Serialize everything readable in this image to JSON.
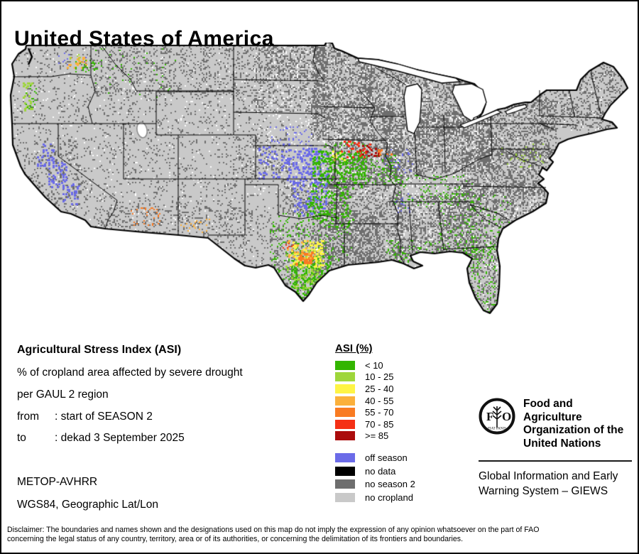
{
  "window": {
    "title": "United States of America"
  },
  "info": {
    "heading": "Agricultural Stress Index (ASI)",
    "line1": "% of cropland area affected by severe drought",
    "line2": "per GAUL 2 region",
    "from_label": "from",
    "from_value": ": start of SEASON 2",
    "to_label": "to",
    "to_value": ": dekad 3 September 2025",
    "sensor": "METOP-AVHRR",
    "projection": "WGS84, Geographic Lat/Lon"
  },
  "legend": {
    "title": "ASI (%)",
    "classes": [
      {
        "label": "< 10",
        "color": "#33b500"
      },
      {
        "label": "10 - 25",
        "color": "#9ed63a"
      },
      {
        "label": "25 - 40",
        "color": "#fef445"
      },
      {
        "label": "40 - 55",
        "color": "#fbb03b"
      },
      {
        "label": "55 - 70",
        "color": "#f97b22"
      },
      {
        "label": "70 - 85",
        "color": "#f53015"
      },
      {
        "label": ">= 85",
        "color": "#ab0c0c"
      }
    ],
    "extras": [
      {
        "label": "off season",
        "color": "#6b6be8"
      },
      {
        "label": "no data",
        "color": "#000000"
      },
      {
        "label": "no season 2",
        "color": "#6e6e6e"
      },
      {
        "label": "no cropland",
        "color": "#c9c9c9"
      }
    ]
  },
  "fao": {
    "logo_label": "FAO",
    "logo_motto": "FIAT PANIS",
    "org_lines": [
      "Food and Agriculture",
      "Organization of the",
      "United Nations"
    ],
    "giews_lines": [
      "Global Information and Early",
      "Warning System – GIEWS"
    ]
  },
  "disclaimer": {
    "lines": [
      "Disclaimer: The boundaries and names shown and the designations used on this map do not imply the expression of any opinion whatsoever on the part of FAO",
      "concerning the legal status of any country, territory, area or of its authorities, or concerning the delimitation of its frontiers and boundaries."
    ]
  },
  "map": {
    "land_color": "#c9c9c9",
    "outline_color": "#000000",
    "water_color": "#ffffff",
    "palette": {
      "g1": "#33b500",
      "g2": "#9ed63a",
      "y": "#fef445",
      "o1": "#fbb03b",
      "o2": "#f97b22",
      "r1": "#f53015",
      "r2": "#ab0c0c",
      "blue": "#6b6be8",
      "dark": "#6e6e6e",
      "light": "#c9c9c9",
      "white": "#ffffff"
    },
    "no_season_zones": [
      {
        "name": "north-dakota",
        "r": [
          348,
          2,
          100,
          52
        ],
        "d": 0.45
      },
      {
        "name": "minnesota",
        "r": [
          428,
          2,
          85,
          90
        ],
        "d": 0.5
      },
      {
        "name": "wisconsin",
        "r": [
          495,
          28,
          80,
          78
        ],
        "d": 0.45
      },
      {
        "name": "michigan",
        "r": [
          575,
          52,
          78,
          80
        ],
        "d": 0.45
      },
      {
        "name": "iowa",
        "r": [
          425,
          86,
          115,
          52
        ],
        "d": 0.6
      },
      {
        "name": "illinois",
        "r": [
          528,
          96,
          58,
          95
        ],
        "d": 0.6
      },
      {
        "name": "indiana-ohio",
        "r": [
          585,
          98,
          98,
          85
        ],
        "d": 0.55
      },
      {
        "name": "missouri",
        "r": [
          448,
          134,
          105,
          68
        ],
        "d": 0.45
      },
      {
        "name": "pennsylvania-newyork",
        "r": [
          658,
          80,
          115,
          85
        ],
        "d": 0.4
      },
      {
        "name": "wv-virginia",
        "r": [
          638,
          148,
          125,
          68
        ],
        "d": 0.42
      },
      {
        "name": "carolinas",
        "r": [
          618,
          198,
          148,
          62
        ],
        "d": 0.4
      },
      {
        "name": "ms-al-georgia",
        "r": [
          542,
          212,
          125,
          95
        ],
        "d": 0.42
      },
      {
        "name": "arkansas-louisiana",
        "r": [
          455,
          196,
          100,
          115
        ],
        "d": 0.38
      },
      {
        "name": "south-dakota",
        "r": [
          348,
          54,
          100,
          44
        ],
        "d": 0.22
      },
      {
        "name": "florida",
        "r": [
          635,
          268,
          72,
          130
        ],
        "d": 0.3
      },
      {
        "name": "new-england",
        "r": [
          740,
          28,
          125,
          95
        ],
        "d": 0.3
      },
      {
        "name": "texas-east",
        "r": [
          428,
          238,
          95,
          85
        ],
        "d": 0.4
      },
      {
        "name": "texas-central",
        "r": [
          368,
          255,
          85,
          110
        ],
        "d": 0.25
      },
      {
        "name": "oklahoma",
        "r": [
          385,
          192,
          95,
          52
        ],
        "d": 0.32
      },
      {
        "name": "montana",
        "r": [
          120,
          0,
          230,
          75
        ],
        "d": 0.12
      },
      {
        "name": "west-scatter",
        "r": [
          0,
          0,
          360,
          260
        ],
        "d": 0.07
      },
      {
        "name": "southwest-scatter",
        "r": [
          120,
          230,
          250,
          80
        ],
        "d": 0.12
      },
      {
        "name": "west-kansas",
        "r": [
          317,
          130,
          80,
          62
        ],
        "d": 0.15
      },
      {
        "name": "all-scatter",
        "r": [
          0,
          0,
          883,
          404
        ],
        "d": 0.03
      }
    ],
    "white_zones": [
      {
        "name": "midwest-holes",
        "r": [
          345,
          0,
          340,
          220
        ],
        "d": 0.05
      },
      {
        "name": "south-holes",
        "r": [
          540,
          200,
          230,
          120
        ],
        "d": 0.04
      },
      {
        "name": "land-holes",
        "r": [
          0,
          0,
          883,
          404
        ],
        "d": 0.015
      }
    ],
    "features": [
      {
        "name": "washington-cluster-orange",
        "c": "o1",
        "r": [
          82,
          20,
          30,
          16
        ],
        "d": 0.45,
        "s": 3
      },
      {
        "name": "washington-cluster-green",
        "c": "g1",
        "r": [
          92,
          24,
          34,
          18
        ],
        "d": 0.18,
        "s": 2
      },
      {
        "name": "washington-cluster-lime",
        "c": "g2",
        "r": [
          80,
          16,
          24,
          10
        ],
        "d": 0.12,
        "s": 2
      },
      {
        "name": "washington-blue",
        "c": "blue",
        "r": [
          70,
          14,
          40,
          20
        ],
        "d": 0.05,
        "s": 2
      },
      {
        "name": "oregon-willamette-lime",
        "c": "g2",
        "r": [
          20,
          56,
          14,
          40
        ],
        "d": 0.4,
        "s": 3
      },
      {
        "name": "oregon-willamette-green",
        "c": "g1",
        "r": [
          24,
          60,
          16,
          34
        ],
        "d": 0.12,
        "s": 2
      },
      {
        "name": "california-valley-blue-n",
        "c": "blue",
        "r": [
          40,
          142,
          24,
          32
        ],
        "d": 0.4,
        "s": 3
      },
      {
        "name": "california-valley-blue-m",
        "c": "blue",
        "r": [
          56,
          168,
          26,
          36
        ],
        "d": 0.45,
        "s": 3
      },
      {
        "name": "california-valley-blue-s",
        "c": "blue",
        "r": [
          76,
          198,
          24,
          30
        ],
        "d": 0.4,
        "s": 3
      },
      {
        "name": "california-valley-dark",
        "c": "dark",
        "r": [
          38,
          138,
          66,
          96
        ],
        "d": 0.1,
        "s": 3
      },
      {
        "name": "california-orange",
        "c": "o2",
        "r": [
          28,
          222,
          34,
          14
        ],
        "d": 0.12,
        "s": 2
      },
      {
        "name": "arizona-orange-w",
        "c": "o2",
        "r": [
          172,
          232,
          48,
          26
        ],
        "d": 0.1,
        "s": 2
      },
      {
        "name": "arizona-orange-e",
        "c": "o1",
        "r": [
          242,
          248,
          48,
          20
        ],
        "d": 0.08,
        "s": 2
      },
      {
        "name": "kansas-blue-main",
        "c": "blue",
        "r": [
          390,
          148,
          60,
          52
        ],
        "d": 0.5,
        "s": 3
      },
      {
        "name": "colorado-blue",
        "c": "blue",
        "r": [
          352,
          142,
          45,
          50
        ],
        "d": 0.22,
        "s": 3
      },
      {
        "name": "kansas-green",
        "c": "g1",
        "r": [
          428,
          152,
          75,
          52
        ],
        "d": 0.45,
        "s": 3
      },
      {
        "name": "kansas-green-east",
        "c": "g1",
        "r": [
          495,
          158,
          55,
          42
        ],
        "d": 0.18,
        "s": 2
      },
      {
        "name": "nebraska-blue",
        "c": "blue",
        "r": [
          368,
          118,
          60,
          28
        ],
        "d": 0.1,
        "s": 2
      },
      {
        "name": "oklahoma-blue",
        "c": "blue",
        "r": [
          400,
          196,
          48,
          48
        ],
        "d": 0.35,
        "s": 3
      },
      {
        "name": "oklahoma-green",
        "c": "g1",
        "r": [
          420,
          205,
          65,
          55
        ],
        "d": 0.3,
        "s": 3
      },
      {
        "name": "missouri-green",
        "c": "g1",
        "r": [
          438,
          140,
          65,
          45
        ],
        "d": 0.12,
        "s": 2
      },
      {
        "name": "missouri-red",
        "c": "r1",
        "r": [
          468,
          138,
          42,
          24
        ],
        "d": 0.25,
        "s": 3
      },
      {
        "name": "missouri-darkred",
        "c": "r2",
        "r": [
          494,
          144,
          30,
          16
        ],
        "d": 0.3,
        "s": 3
      },
      {
        "name": "missouri-orange",
        "c": "o2",
        "r": [
          520,
          148,
          20,
          12
        ],
        "d": 0.25,
        "s": 3
      },
      {
        "name": "missouri-yellow",
        "c": "y",
        "r": [
          452,
          152,
          22,
          14
        ],
        "d": 0.25,
        "s": 3
      },
      {
        "name": "illinois-blue",
        "c": "blue",
        "r": [
          530,
          150,
          40,
          35
        ],
        "d": 0.07,
        "s": 2
      },
      {
        "name": "kentucky-tenn-green",
        "c": "g1",
        "r": [
          540,
          186,
          115,
          48
        ],
        "d": 0.08,
        "s": 2
      },
      {
        "name": "arkansas-blue",
        "c": "blue",
        "r": [
          540,
          212,
          30,
          28
        ],
        "d": 0.08,
        "s": 2
      },
      {
        "name": "texas-green-spread",
        "c": "g1",
        "r": [
          368,
          240,
          115,
          160
        ],
        "d": 0.1,
        "s": 2
      },
      {
        "name": "texas-green-core",
        "c": "g1",
        "r": [
          398,
          300,
          55,
          75
        ],
        "d": 0.5,
        "s": 3
      },
      {
        "name": "texas-lime",
        "c": "g2",
        "r": [
          388,
          292,
          55,
          55
        ],
        "d": 0.28,
        "s": 3
      },
      {
        "name": "texas-yellow",
        "c": "y",
        "r": [
          396,
          278,
          48,
          38
        ],
        "d": 0.5,
        "s": 3
      },
      {
        "name": "texas-orange-blob",
        "c": "o2",
        "r": [
          404,
          294,
          24,
          18
        ],
        "d": 0.85,
        "s": 4
      },
      {
        "name": "texas-orange-spread",
        "c": "o1",
        "r": [
          392,
          276,
          40,
          30
        ],
        "d": 0.15,
        "s": 3
      },
      {
        "name": "texas-red",
        "c": "r1",
        "r": [
          386,
          282,
          16,
          12
        ],
        "d": 0.15,
        "s": 2
      },
      {
        "name": "louisiana-green",
        "c": "g1",
        "r": [
          532,
          278,
          75,
          32
        ],
        "d": 0.15,
        "s": 2
      },
      {
        "name": "southeast-green",
        "c": "g1",
        "r": [
          605,
          212,
          105,
          95
        ],
        "d": 0.08,
        "s": 2
      },
      {
        "name": "florida-green",
        "c": "g1",
        "r": [
          632,
          285,
          55,
          115
        ],
        "d": 0.12,
        "s": 2
      },
      {
        "name": "midatlantic-lime",
        "c": "g2",
        "r": [
          688,
          142,
          65,
          35
        ],
        "d": 0.06,
        "s": 2
      },
      {
        "name": "northwest-specks",
        "c": "g1",
        "r": [
          120,
          8,
          120,
          70
        ],
        "d": 0.02,
        "s": 2
      }
    ]
  }
}
